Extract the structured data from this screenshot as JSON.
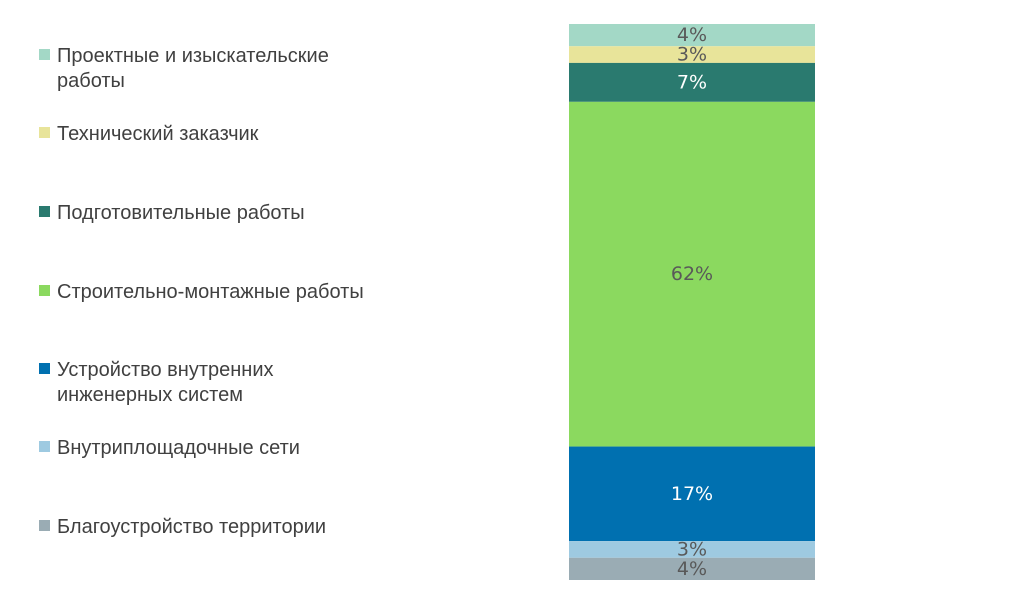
{
  "chart_data": {
    "type": "bar",
    "stacked": true,
    "orientation": "vertical-100%",
    "title": "",
    "xlabel": "",
    "ylabel": "",
    "legend_position": "left",
    "series": [
      {
        "name": "Проектные  и изыскательские работы",
        "value": 4,
        "label": "4%",
        "color": "#a3d8c6",
        "label_color": "#595959"
      },
      {
        "name": "Технический заказчик",
        "value": 3,
        "label": "3%",
        "color": "#e8e49a",
        "label_color": "#595959"
      },
      {
        "name": "Подготовительные работы",
        "value": 7,
        "label": "7%",
        "color": "#2a7a6f",
        "label_color": "#ffffff"
      },
      {
        "name": "Строительно-монтажные работы",
        "value": 62,
        "label": "62%",
        "color": "#8bd95f",
        "label_color": "#595959"
      },
      {
        "name": "Устройство внутренних инженерных систем",
        "value": 17,
        "label": "17%",
        "color": "#0070b0",
        "label_color": "#ffffff"
      },
      {
        "name": "Внутриплощадочные сети",
        "value": 3,
        "label": "3%",
        "color": "#9ecae1",
        "label_color": "#595959"
      },
      {
        "name": "Благоустройство территории",
        "value": 4,
        "label": "4%",
        "color": "#9aacb4",
        "label_color": "#595959"
      }
    ]
  }
}
